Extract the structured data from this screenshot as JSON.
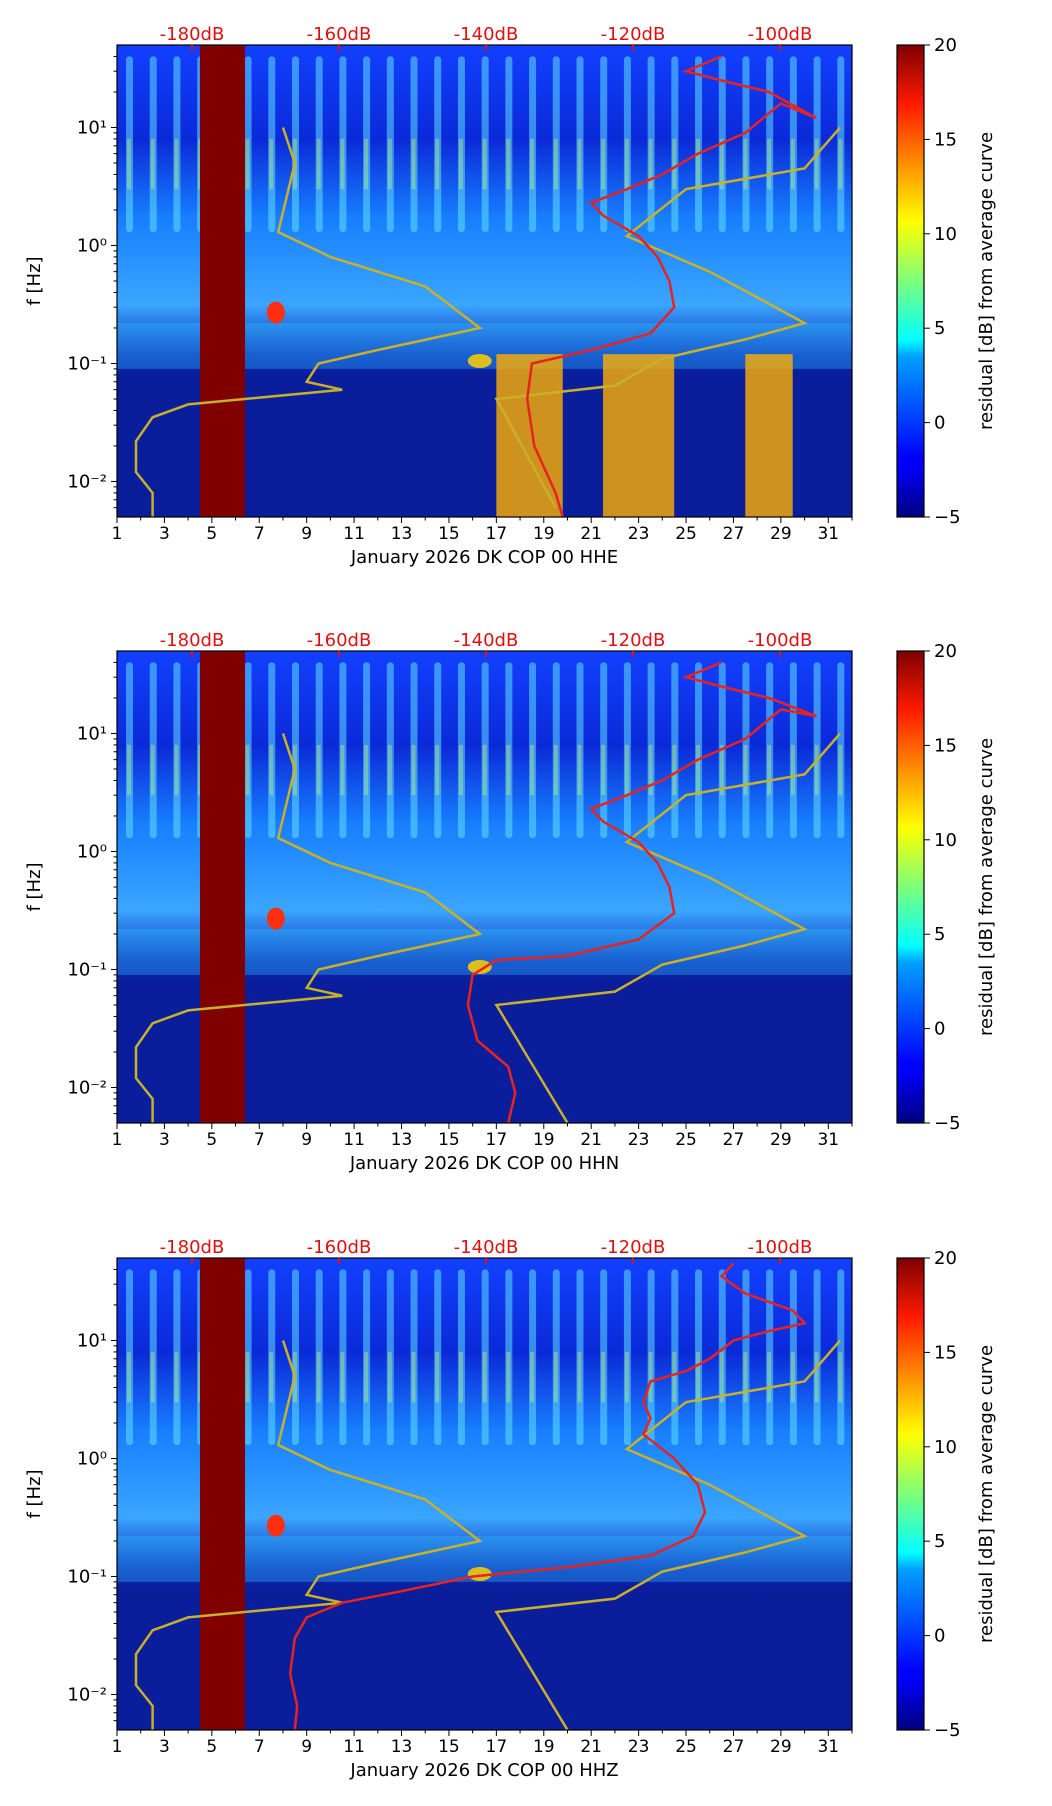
{
  "chart_data": [
    {
      "type": "heatmap",
      "channel": "HHE",
      "xlabel": "January 2026 DK COP 00 HHE",
      "ylabel": "f [Hz]",
      "xticks": [
        1,
        3,
        5,
        7,
        9,
        11,
        13,
        15,
        17,
        19,
        21,
        23,
        25,
        27,
        29,
        31
      ],
      "xlim": [
        1,
        32
      ],
      "ylim": [
        0.005,
        50
      ],
      "ytick_labels": [
        "10⁻²",
        "10⁻¹",
        "10⁰",
        "10¹"
      ],
      "top_axis_labels": [
        "-180dB",
        "-160dB",
        "-140dB",
        "-120dB",
        "-100dB"
      ],
      "colorbar": {
        "label": "residual [dB] from average curve",
        "ticks": [
          -5,
          0,
          5,
          10,
          15,
          20
        ],
        "range": [
          -5,
          20
        ]
      },
      "gap_days": [
        4.5,
        6.4
      ],
      "red_curve": [
        [
          26.5,
          40
        ],
        [
          25,
          30
        ],
        [
          26.5,
          25
        ],
        [
          28.5,
          20
        ],
        [
          30.5,
          12
        ],
        [
          29,
          16
        ],
        [
          27.5,
          9
        ],
        [
          25.5,
          6
        ],
        [
          24,
          4
        ],
        [
          22.5,
          3
        ],
        [
          21,
          2.3
        ],
        [
          21.5,
          1.8
        ],
        [
          23,
          1.2
        ],
        [
          23.8,
          0.8
        ],
        [
          24.3,
          0.5
        ],
        [
          24.5,
          0.3
        ],
        [
          23.5,
          0.18
        ],
        [
          21,
          0.13
        ],
        [
          18.5,
          0.1
        ],
        [
          18.3,
          0.05
        ],
        [
          18.6,
          0.02
        ],
        [
          19.5,
          0.008
        ],
        [
          19.8,
          0.005
        ]
      ],
      "yellow_curve": [
        [
          8,
          10
        ],
        [
          8.5,
          5
        ],
        [
          7.8,
          1.3
        ],
        [
          10,
          0.8
        ],
        [
          14,
          0.45
        ],
        [
          16.3,
          0.2
        ],
        [
          12,
          0.13
        ],
        [
          9.5,
          0.1
        ],
        [
          9,
          0.07
        ],
        [
          10.5,
          0.06
        ],
        [
          4,
          0.045
        ],
        [
          2.5,
          0.035
        ],
        [
          1.8,
          0.022
        ],
        [
          1.8,
          0.012
        ],
        [
          2.5,
          0.008
        ],
        [
          2.5,
          0.005
        ]
      ],
      "yellow_curve_right": [
        [
          31.5,
          10
        ],
        [
          30,
          4.5
        ],
        [
          25,
          3
        ],
        [
          22.5,
          1.2
        ],
        [
          26,
          0.6
        ],
        [
          30,
          0.22
        ],
        [
          27.5,
          0.16
        ],
        [
          24,
          0.11
        ],
        [
          22,
          0.065
        ],
        [
          17,
          0.05
        ],
        [
          19.5,
          0.006
        ]
      ],
      "hot_bands_low": [
        [
          17,
          19.8
        ],
        [
          21.5,
          24.5
        ],
        [
          27.5,
          29.5
        ]
      ]
    },
    {
      "type": "heatmap",
      "channel": "HHN",
      "xlabel": "January 2026 DK COP 00 HHN",
      "ylabel": "f [Hz]",
      "xticks": [
        1,
        3,
        5,
        7,
        9,
        11,
        13,
        15,
        17,
        19,
        21,
        23,
        25,
        27,
        29,
        31
      ],
      "xlim": [
        1,
        32
      ],
      "ylim": [
        0.005,
        50
      ],
      "ytick_labels": [
        "10⁻²",
        "10⁻¹",
        "10⁰",
        "10¹"
      ],
      "top_axis_labels": [
        "-180dB",
        "-160dB",
        "-140dB",
        "-120dB",
        "-100dB"
      ],
      "colorbar": {
        "label": "residual [dB] from average curve",
        "ticks": [
          -5,
          0,
          5,
          10,
          15,
          20
        ],
        "range": [
          -5,
          20
        ]
      },
      "gap_days": [
        4.5,
        6.4
      ],
      "red_curve": [
        [
          26.5,
          40
        ],
        [
          25,
          30
        ],
        [
          26.5,
          25
        ],
        [
          28.5,
          20
        ],
        [
          30.5,
          14
        ],
        [
          29,
          16
        ],
        [
          27.5,
          9
        ],
        [
          25.5,
          6
        ],
        [
          24,
          4
        ],
        [
          22.5,
          3
        ],
        [
          21,
          2.3
        ],
        [
          21.5,
          1.8
        ],
        [
          23,
          1.2
        ],
        [
          23.8,
          0.8
        ],
        [
          24.3,
          0.5
        ],
        [
          24.5,
          0.3
        ],
        [
          23,
          0.18
        ],
        [
          20,
          0.13
        ],
        [
          17,
          0.12
        ],
        [
          16,
          0.09
        ],
        [
          15.8,
          0.05
        ],
        [
          16.2,
          0.025
        ],
        [
          17.5,
          0.015
        ],
        [
          17.8,
          0.009
        ],
        [
          17.5,
          0.005
        ]
      ],
      "yellow_curve": [
        [
          8,
          10
        ],
        [
          8.5,
          5
        ],
        [
          7.8,
          1.3
        ],
        [
          10,
          0.8
        ],
        [
          14,
          0.45
        ],
        [
          16.3,
          0.2
        ],
        [
          12,
          0.13
        ],
        [
          9.5,
          0.1
        ],
        [
          9,
          0.07
        ],
        [
          10.5,
          0.06
        ],
        [
          4,
          0.045
        ],
        [
          2.5,
          0.035
        ],
        [
          1.8,
          0.022
        ],
        [
          1.8,
          0.012
        ],
        [
          2.5,
          0.008
        ],
        [
          2.5,
          0.005
        ]
      ],
      "yellow_curve_right": [
        [
          31.5,
          10
        ],
        [
          30,
          4.5
        ],
        [
          25,
          3
        ],
        [
          22.5,
          1.2
        ],
        [
          26,
          0.6
        ],
        [
          30,
          0.22
        ],
        [
          27.5,
          0.16
        ],
        [
          24,
          0.11
        ],
        [
          22,
          0.065
        ],
        [
          17,
          0.05
        ],
        [
          20,
          0.005
        ]
      ],
      "hot_bands_low": []
    },
    {
      "type": "heatmap",
      "channel": "HHZ",
      "xlabel": "January 2026 DK COP 00 HHZ",
      "ylabel": "f [Hz]",
      "xticks": [
        1,
        3,
        5,
        7,
        9,
        11,
        13,
        15,
        17,
        19,
        21,
        23,
        25,
        27,
        29,
        31
      ],
      "xlim": [
        1,
        32
      ],
      "ylim": [
        0.005,
        50
      ],
      "ytick_labels": [
        "10⁻²",
        "10⁻¹",
        "10⁰",
        "10¹"
      ],
      "top_axis_labels": [
        "-180dB",
        "-160dB",
        "-140dB",
        "-120dB",
        "-100dB"
      ],
      "colorbar": {
        "label": "residual [dB] from average curve",
        "ticks": [
          -5,
          0,
          5,
          10,
          15,
          20
        ],
        "range": [
          -5,
          20
        ]
      },
      "gap_days": [
        4.5,
        6.4
      ],
      "red_curve": [
        [
          27,
          45
        ],
        [
          26.5,
          35
        ],
        [
          27.5,
          25
        ],
        [
          29.5,
          18
        ],
        [
          30,
          14
        ],
        [
          28.5,
          12
        ],
        [
          27,
          10
        ],
        [
          26,
          7
        ],
        [
          25,
          5.5
        ],
        [
          23.5,
          4.5
        ],
        [
          23.2,
          3
        ],
        [
          23.5,
          2.2
        ],
        [
          23.2,
          1.6
        ],
        [
          24.5,
          1
        ],
        [
          25.5,
          0.6
        ],
        [
          25.8,
          0.35
        ],
        [
          25.3,
          0.22
        ],
        [
          23.5,
          0.15
        ],
        [
          20,
          0.12
        ],
        [
          16,
          0.1
        ],
        [
          13,
          0.075
        ],
        [
          10.5,
          0.06
        ],
        [
          9,
          0.045
        ],
        [
          8.5,
          0.03
        ],
        [
          8.3,
          0.015
        ],
        [
          8.6,
          0.008
        ],
        [
          8.5,
          0.005
        ]
      ],
      "yellow_curve": [
        [
          8,
          10
        ],
        [
          8.5,
          5
        ],
        [
          7.8,
          1.3
        ],
        [
          10,
          0.8
        ],
        [
          14,
          0.45
        ],
        [
          16.3,
          0.2
        ],
        [
          12,
          0.13
        ],
        [
          9.5,
          0.1
        ],
        [
          9,
          0.07
        ],
        [
          10.5,
          0.06
        ],
        [
          4,
          0.045
        ],
        [
          2.5,
          0.035
        ],
        [
          1.8,
          0.022
        ],
        [
          1.8,
          0.012
        ],
        [
          2.5,
          0.008
        ],
        [
          2.5,
          0.005
        ]
      ],
      "yellow_curve_right": [
        [
          31.5,
          10
        ],
        [
          30,
          4.5
        ],
        [
          25,
          3
        ],
        [
          22.5,
          1.2
        ],
        [
          26,
          0.6
        ],
        [
          30,
          0.22
        ],
        [
          27.5,
          0.16
        ],
        [
          24,
          0.11
        ],
        [
          22,
          0.065
        ],
        [
          17,
          0.05
        ],
        [
          20,
          0.005
        ]
      ],
      "hot_bands_low": []
    }
  ],
  "colors": {
    "red_curve": "#e8231f",
    "yellow_curve": "#c8b02a",
    "top_label": "#e01010",
    "gap": "#800000"
  }
}
